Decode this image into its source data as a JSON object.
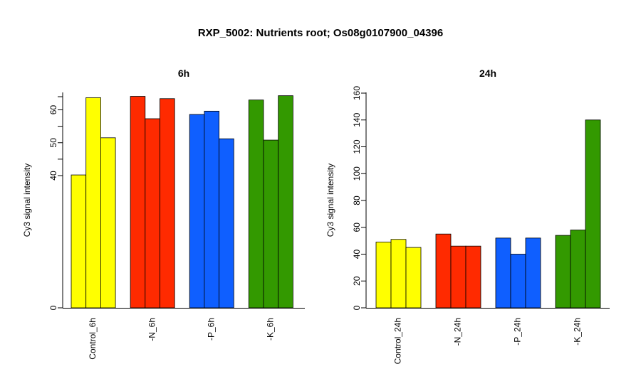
{
  "title": "RXP_5002: Nutrients root; Os08g0107900_04396",
  "chart_data": [
    {
      "type": "bar",
      "title": "6h",
      "ylabel": "Cy3 signal intensity",
      "categories": [
        "Control_6h",
        "-N_6h",
        "-P_6h",
        "-K_6h"
      ],
      "colors": [
        "#ffff00",
        "#ff2a00",
        "#0f5fff",
        "#339900"
      ],
      "bars": [
        [
          40.2,
          63.7,
          51.5
        ],
        [
          64.1,
          57.3,
          63.4
        ],
        [
          58.6,
          59.6,
          51.2
        ],
        [
          63.0,
          50.8,
          64.3
        ]
      ],
      "ylim": [
        0,
        65
      ],
      "yticks": [
        0,
        40,
        50,
        60
      ],
      "y_axis_break": true,
      "grid": false
    },
    {
      "type": "bar",
      "title": "24h",
      "ylabel": "Cy3 signal intensity",
      "categories": [
        "Control_24h",
        "-N_24h",
        "-P_24h",
        "-K_24h"
      ],
      "colors": [
        "#ffff00",
        "#ff2a00",
        "#0f5fff",
        "#339900"
      ],
      "bars": [
        [
          49,
          51,
          45
        ],
        [
          55,
          46,
          46
        ],
        [
          52,
          40,
          52
        ],
        [
          54,
          58,
          140
        ]
      ],
      "ylim": [
        0,
        160
      ],
      "yticks": [
        0,
        20,
        40,
        60,
        80,
        100,
        120,
        140,
        160
      ],
      "grid": false
    }
  ]
}
